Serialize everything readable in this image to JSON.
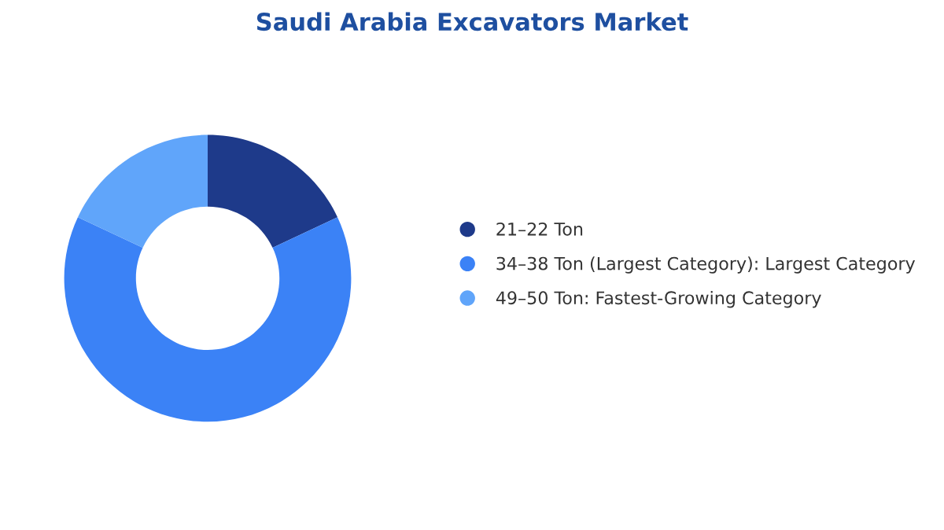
{
  "chart_data": {
    "type": "donut",
    "title": "Saudi Arabia Excavators Market",
    "categories": [
      "21–22 Ton",
      "34–38 Ton (Largest Category): Largest Category",
      "49–50 Ton: Fastest-Growing Category"
    ],
    "values": [
      18,
      64,
      18
    ],
    "colors": [
      "#1e3a8a",
      "#3b82f6",
      "#60a5fa"
    ],
    "legend": "right"
  }
}
